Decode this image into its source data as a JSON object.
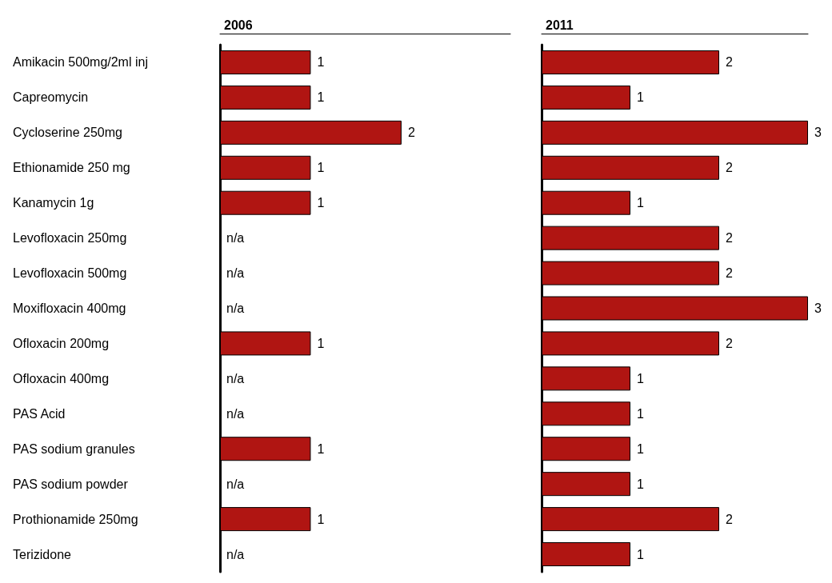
{
  "chart_data": [
    {
      "type": "bar",
      "orientation": "horizontal",
      "title": "2006",
      "categories": [
        "Amikacin 500mg/2ml inj",
        "Capreomycin",
        "Cycloserine 250mg",
        "Ethionamide 250 mg",
        "Kanamycin 1g",
        "Levofloxacin 250mg",
        "Levofloxacin 500mg",
        "Moxifloxacin 400mg",
        "Ofloxacin 200mg",
        "Ofloxacin 400mg",
        "PAS Acid",
        "PAS sodium granules",
        "PAS sodium powder",
        "Prothionamide 250mg",
        "Terizidone"
      ],
      "values": [
        1,
        1,
        2,
        1,
        1,
        null,
        null,
        null,
        1,
        null,
        null,
        1,
        null,
        1,
        null
      ],
      "value_labels": [
        "1",
        "1",
        "2",
        "1",
        "1",
        "n/a",
        "n/a",
        "n/a",
        "1",
        "n/a",
        "n/a",
        "1",
        "n/a",
        "1",
        "n/a"
      ],
      "color": "#b01512",
      "xlim": [
        0,
        3.2
      ],
      "tick_labels": "y"
    },
    {
      "type": "bar",
      "orientation": "horizontal",
      "title": "2011",
      "categories": [
        null,
        null,
        null,
        null,
        null,
        null,
        null,
        null,
        null,
        null,
        null,
        null,
        null,
        null,
        null
      ],
      "values": [
        2,
        1,
        3,
        2,
        1,
        2,
        2,
        3,
        2,
        1,
        1,
        1,
        1,
        2,
        1
      ],
      "value_labels": [
        "2",
        "1",
        "3",
        "2",
        "1",
        "2",
        "2",
        "3",
        "2",
        "1",
        "1",
        "1",
        "1",
        "2",
        "1"
      ],
      "color": "#b01512",
      "xlim": [
        0,
        3
      ],
      "tick_labels": false
    }
  ]
}
